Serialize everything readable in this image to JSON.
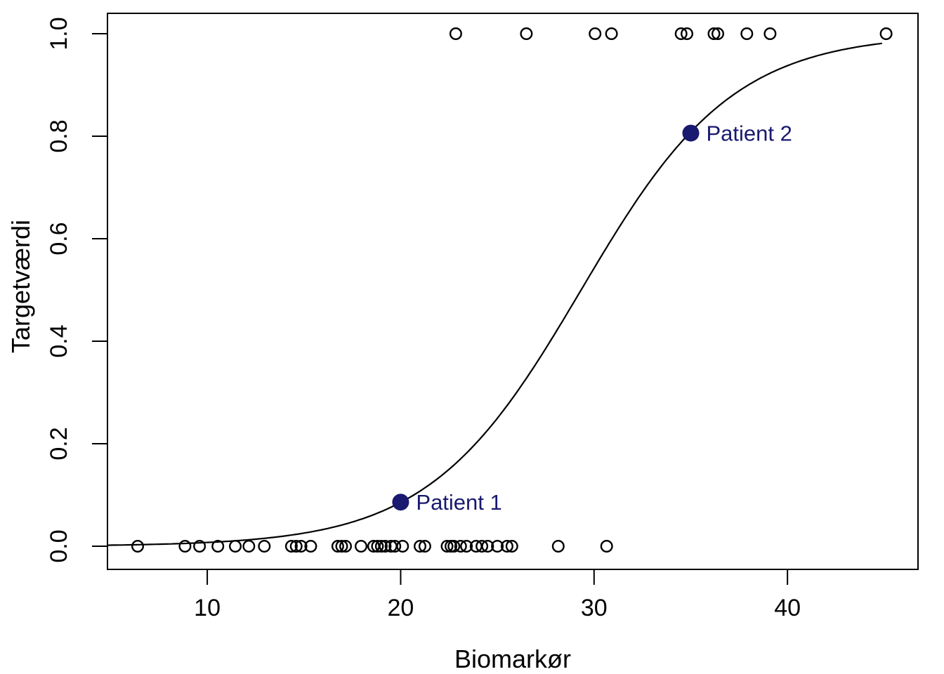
{
  "figure": {
    "xlabel": "Biomarkør",
    "ylabel": "Targetværdi"
  },
  "chart_data": {
    "type": "scatter",
    "title": "",
    "xlabel": "Biomarkør",
    "ylabel": "Targetværdi",
    "x_ticks": [
      10,
      20,
      30,
      40
    ],
    "x_tick_labels": [
      "10",
      "20",
      "30",
      "40"
    ],
    "y_ticks": [
      0,
      0.2,
      0.4,
      0.6,
      0.8,
      1
    ],
    "y_tick_labels": [
      "0.0",
      "0.2",
      "0.4",
      "0.6",
      "0.8",
      "1.0"
    ],
    "xlim": [
      4.84,
      46.75
    ],
    "ylim": [
      -0.0452,
      1.0397
    ],
    "grid": false,
    "legend": "none",
    "background": "#ffffff",
    "axis_color": "#000000",
    "series": [
      {
        "name": "outcome-0-observations",
        "marker": "open-circle",
        "color": "#000000",
        "y_constant": 0,
        "x": [
          6.4,
          8.85,
          9.6,
          10.55,
          11.45,
          12.15,
          12.95,
          14.35,
          14.6,
          14.85,
          15.35,
          16.75,
          16.95,
          17.15,
          17.95,
          18.6,
          18.8,
          19.0,
          19.2,
          19.5,
          19.7,
          20.1,
          21.0,
          21.25,
          22.4,
          22.6,
          22.75,
          23.1,
          23.4,
          23.9,
          24.2,
          24.5,
          25.0,
          25.5,
          25.75,
          28.15,
          30.65
        ]
      },
      {
        "name": "outcome-1-observations",
        "marker": "open-circle",
        "color": "#000000",
        "y_constant": 1,
        "x": [
          22.85,
          26.5,
          30.05,
          30.9,
          34.5,
          34.8,
          36.2,
          36.4,
          37.9,
          39.1,
          45.1
        ]
      }
    ],
    "curve": {
      "name": "logistic-fit",
      "type": "logistic",
      "intercept": -7.45,
      "slope": 0.254,
      "x_from": 4.84,
      "x_to": 44.9,
      "color": "#000000"
    },
    "highlights": [
      {
        "label": "Patient 1",
        "x": 20,
        "y": 0.086,
        "color": "#191970"
      },
      {
        "label": "Patient 2",
        "x": 35,
        "y": 0.806,
        "color": "#191970"
      }
    ]
  }
}
